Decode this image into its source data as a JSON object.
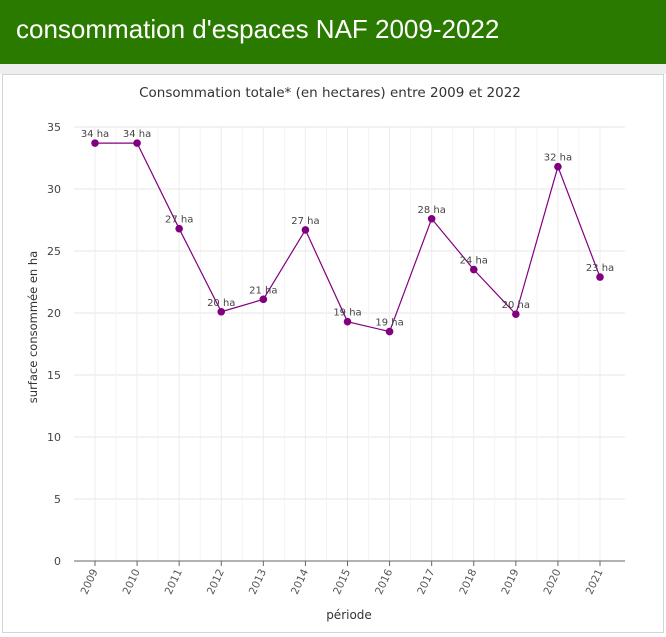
{
  "header": {
    "title": "consommation d'espaces NAF 2009-2022"
  },
  "colors": {
    "header_bg": "#2a7a00",
    "series": "#800080"
  },
  "chart_data": {
    "type": "line",
    "title": "Consommation totale* (en hectares) entre 2009 et 2022",
    "xlabel": "période",
    "ylabel": "surface consommée en ha",
    "ylim": [
      0,
      35
    ],
    "yticks": [
      "0",
      "5",
      "10",
      "15",
      "20",
      "25",
      "30",
      "35"
    ],
    "categories": [
      "2009",
      "2010",
      "2011",
      "2012",
      "2013",
      "2014",
      "2015",
      "2016",
      "2017",
      "2018",
      "2019",
      "2020",
      "2021"
    ],
    "series": [
      {
        "values": [
          33.7,
          33.7,
          26.8,
          20.1,
          21.1,
          26.7,
          19.3,
          18.5,
          27.6,
          23.5,
          19.9,
          31.8,
          22.9
        ],
        "labels": [
          "34 ha",
          "34 ha",
          "27 ha",
          "20 ha",
          "21 ha",
          "27 ha",
          "19 ha",
          "19 ha",
          "28 ha",
          "24 ha",
          "20 ha",
          "32 ha",
          "23 ha"
        ]
      }
    ],
    "grid": true,
    "legend": "none"
  }
}
